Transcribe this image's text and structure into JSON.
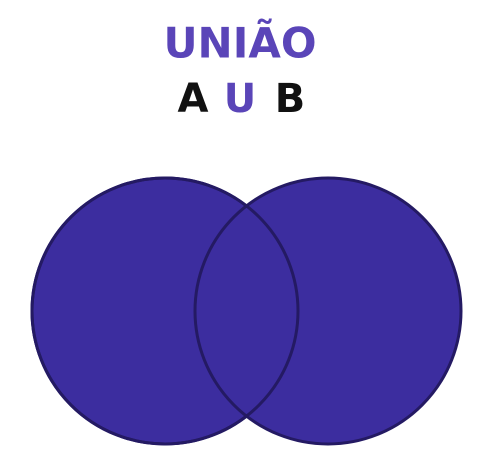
{
  "title": "UNIÃO",
  "expression": [
    "A",
    "U",
    "B"
  ]
}
